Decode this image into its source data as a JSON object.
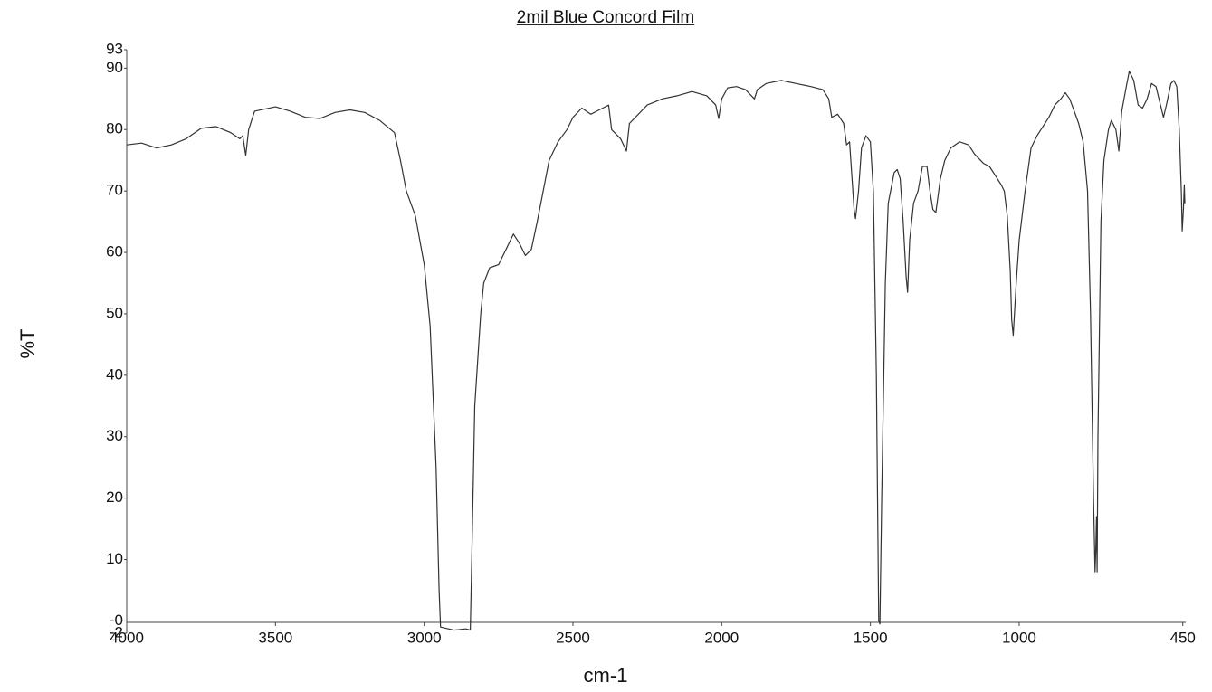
{
  "chart_data": {
    "type": "line",
    "title": "2mil Blue Concord Film",
    "x_label": "cm-1",
    "y_label": "%T",
    "xlim": [
      4000,
      440
    ],
    "ylim": [
      -2,
      93
    ],
    "xticks": [
      4000,
      3500,
      3000,
      2500,
      2000,
      1500,
      1000,
      450
    ],
    "yticks": [
      93,
      90,
      80,
      70,
      60,
      50,
      40,
      30,
      20,
      10,
      {
        "value": 0,
        "label": "-0"
      },
      -2
    ],
    "color": "#333333",
    "x": [
      4000,
      3950,
      3900,
      3850,
      3800,
      3750,
      3700,
      3650,
      3620,
      3610,
      3600,
      3590,
      3570,
      3500,
      3450,
      3400,
      3350,
      3300,
      3250,
      3200,
      3150,
      3100,
      3080,
      3060,
      3030,
      3000,
      2980,
      2960,
      2950,
      2945,
      2900,
      2860,
      2845,
      2840,
      2830,
      2810,
      2800,
      2780,
      2750,
      2720,
      2700,
      2680,
      2660,
      2640,
      2620,
      2600,
      2580,
      2550,
      2520,
      2500,
      2470,
      2440,
      2420,
      2380,
      2370,
      2340,
      2320,
      2310,
      2290,
      2250,
      2200,
      2150,
      2100,
      2050,
      2020,
      2010,
      2000,
      1980,
      1950,
      1920,
      1900,
      1890,
      1880,
      1850,
      1800,
      1750,
      1700,
      1660,
      1640,
      1630,
      1610,
      1590,
      1580,
      1570,
      1555,
      1550,
      1540,
      1530,
      1515,
      1500,
      1490,
      1480,
      1472,
      1468,
      1462,
      1450,
      1440,
      1420,
      1410,
      1400,
      1390,
      1380,
      1375,
      1368,
      1355,
      1340,
      1325,
      1310,
      1300,
      1290,
      1280,
      1265,
      1250,
      1230,
      1200,
      1170,
      1150,
      1120,
      1100,
      1080,
      1060,
      1050,
      1040,
      1030,
      1025,
      1020,
      1010,
      1000,
      980,
      960,
      940,
      920,
      900,
      880,
      860,
      845,
      830,
      815,
      800,
      785,
      770,
      760,
      750,
      745,
      742,
      740,
      738,
      735,
      725,
      715,
      700,
      690,
      675,
      665,
      655,
      640,
      630,
      615,
      600,
      585,
      570,
      555,
      540,
      525,
      515,
      505,
      490,
      480,
      470,
      462,
      455,
      452,
      448,
      445,
      443
    ],
    "values": [
      77.5,
      77.8,
      77,
      77.5,
      78.5,
      80.2,
      80.5,
      79.5,
      78.5,
      79,
      75.8,
      80,
      83,
      83.7,
      83,
      82,
      81.8,
      82.8,
      83.2,
      82.8,
      81.5,
      79.5,
      75,
      70,
      66,
      58,
      48,
      25,
      5,
      -1,
      -1.5,
      -1.3,
      -1.5,
      10,
      35,
      50,
      55,
      57.5,
      58,
      61,
      63,
      61.5,
      59.5,
      60.5,
      65,
      70,
      75,
      78,
      80,
      82,
      83.5,
      82.5,
      83,
      84,
      80,
      78.5,
      76.5,
      81,
      82,
      84,
      85,
      85.5,
      86.2,
      85.5,
      84,
      81.8,
      85,
      86.8,
      87,
      86.5,
      85.5,
      85,
      86.5,
      87.5,
      88,
      87.5,
      87,
      86.5,
      85,
      82,
      82.5,
      81,
      77.5,
      78,
      67,
      65.5,
      70,
      77,
      79,
      78,
      70,
      40,
      0,
      -0.5,
      20,
      55,
      68,
      73,
      73.5,
      72,
      65,
      56,
      53.5,
      62,
      68,
      70,
      74,
      74,
      70,
      67,
      66.5,
      72,
      75,
      77,
      78,
      77.5,
      76,
      74.5,
      74,
      72.5,
      71,
      70,
      66,
      57,
      49,
      46.5,
      55,
      62,
      70,
      77,
      79,
      80.5,
      82,
      84,
      85,
      86,
      85,
      83,
      81,
      78,
      70,
      50,
      20,
      8,
      12,
      17,
      8,
      30,
      65,
      75,
      80,
      81.5,
      80,
      76.5,
      83,
      87,
      89.5,
      88,
      84,
      83.5,
      85,
      87.5,
      87,
      84,
      82,
      84,
      87.5,
      88,
      87,
      80,
      70,
      63.5,
      67,
      71,
      68
    ]
  }
}
